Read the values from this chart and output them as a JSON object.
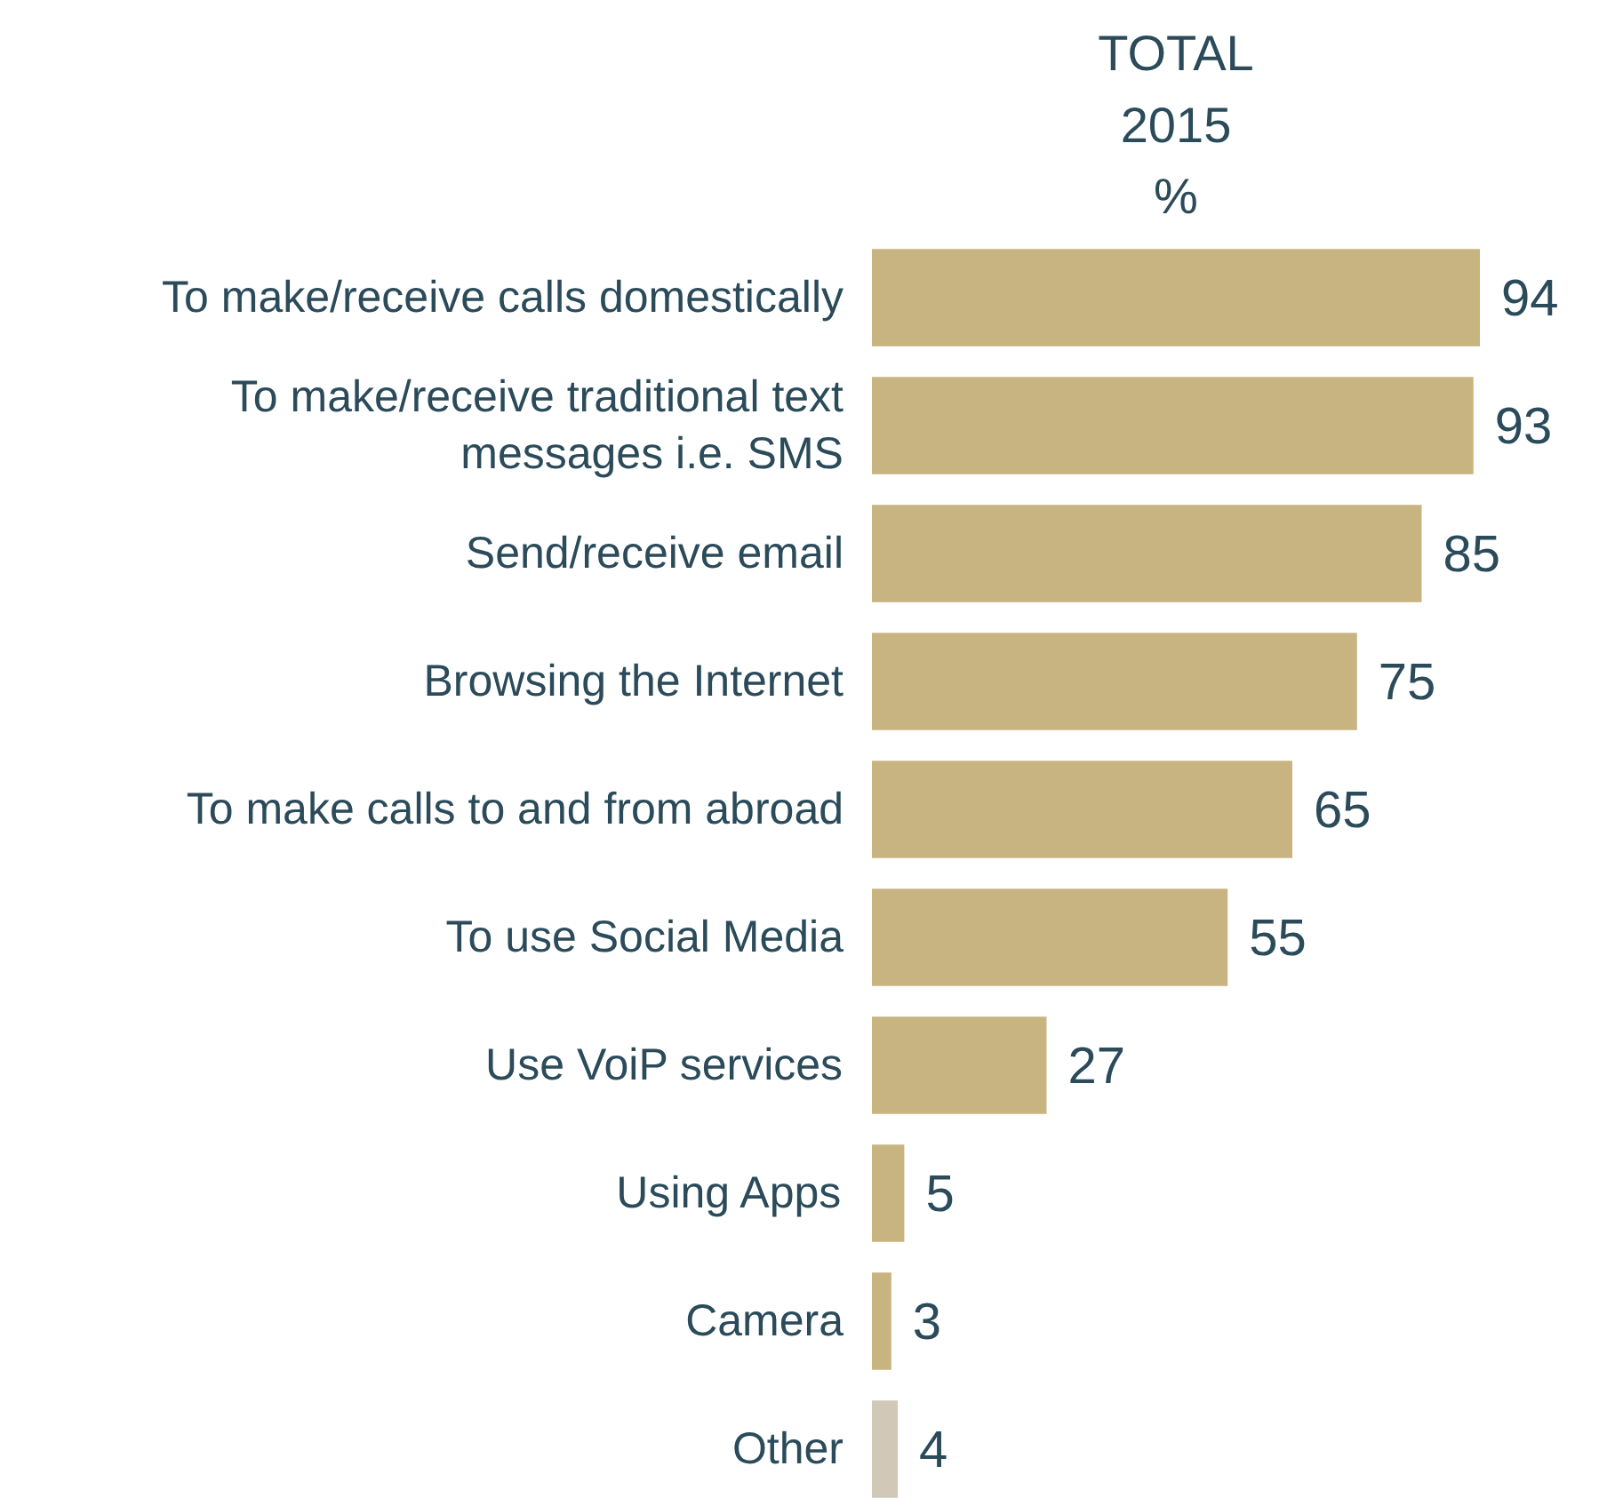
{
  "chart_data": {
    "type": "bar",
    "orientation": "horizontal",
    "title": "TOTAL\n2015\n%",
    "categories": [
      "To make/receive calls domestically",
      "To make/receive traditional text messages i.e. SMS",
      "Send/receive email",
      "Browsing the Internet",
      "To make calls to and from abroad",
      "To use Social Media",
      "Use VoiP services",
      "Using Apps",
      "Camera",
      "Other"
    ],
    "values": [
      94,
      93,
      85,
      75,
      65,
      55,
      27,
      5,
      3,
      4
    ],
    "colors": [
      "#c8b480",
      "#c8b480",
      "#c8b480",
      "#c8b480",
      "#c8b480",
      "#c8b480",
      "#c8b480",
      "#c8b480",
      "#c8b480",
      "#d2c8b8"
    ],
    "data_labels": true
  }
}
